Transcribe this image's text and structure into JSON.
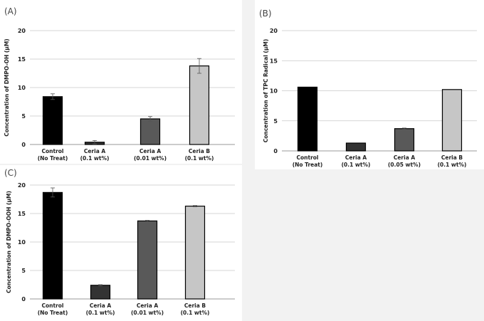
{
  "chart_data": [
    {
      "panel": "(A)",
      "type": "bar",
      "categories": [
        [
          "Control",
          "(No Treat)"
        ],
        [
          "Ceria A",
          "(0.1 wt%)"
        ],
        [
          "Ceria A",
          "(0.01 wt%)"
        ],
        [
          "Ceria B",
          "(0.1 wt%)"
        ]
      ],
      "values": [
        8.4,
        0.4,
        4.5,
        13.8
      ],
      "errors": [
        0.5,
        0.3,
        0.4,
        1.3
      ],
      "colors": [
        "#000000",
        "#333333",
        "#595959",
        "#c6c6c6"
      ],
      "ylabel": "Concentration of  DMPO-OH (μM)",
      "ylim": [
        0,
        20
      ],
      "yticks": [
        0,
        5,
        10,
        15,
        20
      ],
      "grid": true
    },
    {
      "panel": "(B)",
      "type": "bar",
      "categories": [
        [
          "Control",
          "(No Treat)"
        ],
        [
          "Ceria A",
          "(0.1 wt%)"
        ],
        [
          "Ceria A",
          "(0.05 wt%)"
        ],
        [
          "Ceria B",
          "(0.1 wt%)"
        ]
      ],
      "values": [
        10.6,
        1.3,
        3.7,
        10.2
      ],
      "errors": [
        0,
        0,
        0.1,
        0
      ],
      "colors": [
        "#000000",
        "#333333",
        "#595959",
        "#c6c6c6"
      ],
      "ylabel": "Concentration of  TPC Radical (μM)",
      "ylim": [
        0,
        20
      ],
      "yticks": [
        0,
        5,
        10,
        15,
        20
      ],
      "grid": true
    },
    {
      "panel": "(C)",
      "type": "bar",
      "categories": [
        [
          "Control",
          "(No Treat)"
        ],
        [
          "Ceria A",
          "(0.1 wt%)"
        ],
        [
          "Ceria A",
          "(0.01 wt%)"
        ],
        [
          "Ceria B",
          "(0.1 wt%)"
        ]
      ],
      "values": [
        18.7,
        2.4,
        13.7,
        16.3
      ],
      "errors": [
        0.8,
        0.1,
        0.1,
        0.1
      ],
      "colors": [
        "#000000",
        "#333333",
        "#595959",
        "#c6c6c6"
      ],
      "ylabel": "Concentration of  DMPO-OOH (μM)",
      "ylim": [
        0,
        20
      ],
      "yticks": [
        0,
        5,
        10,
        15,
        20
      ],
      "grid": true
    }
  ]
}
